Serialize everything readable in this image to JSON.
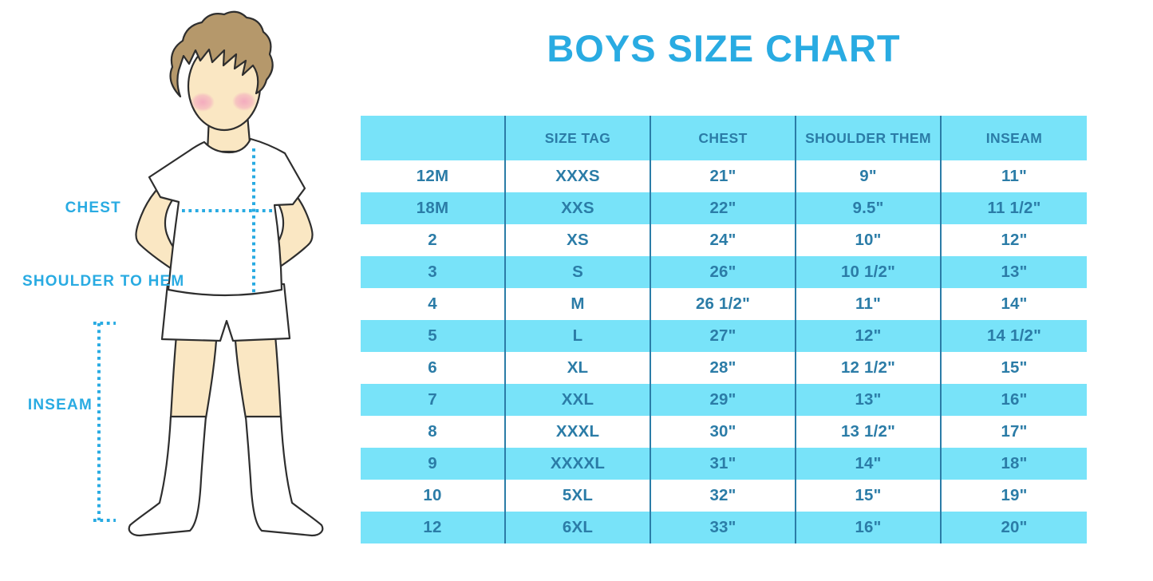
{
  "page_title": "BOYS SIZE CHART",
  "colors": {
    "accent": "#29ABE2",
    "stripe": "#78E3F9",
    "table_text": "#2B7CA7",
    "divider": "#2B7CA7",
    "skin": "#FAE7C3",
    "hair": "#B5986B",
    "blush": "#F3A8BE",
    "outline": "#2E2E2E"
  },
  "diagram": {
    "labels": {
      "chest": "CHEST",
      "shoulder_to_hem": "SHOULDER TO HEM",
      "inseam": "INSEAM"
    }
  },
  "table": {
    "headers": [
      "",
      "SIZE TAG",
      "CHEST",
      "SHOULDER THEM",
      "INSEAM"
    ],
    "rows": [
      [
        "12M",
        "XXXS",
        "21\"",
        "9\"",
        "11\""
      ],
      [
        "18M",
        "XXS",
        "22\"",
        "9.5\"",
        "11 1/2\""
      ],
      [
        "2",
        "XS",
        "24\"",
        "10\"",
        "12\""
      ],
      [
        "3",
        "S",
        "26\"",
        "10 1/2\"",
        "13\""
      ],
      [
        "4",
        "M",
        "26 1/2\"",
        "11\"",
        "14\""
      ],
      [
        "5",
        "L",
        "27\"",
        "12\"",
        "14 1/2\""
      ],
      [
        "6",
        "XL",
        "28\"",
        "12 1/2\"",
        "15\""
      ],
      [
        "7",
        "XXL",
        "29\"",
        "13\"",
        "16\""
      ],
      [
        "8",
        "XXXL",
        "30\"",
        "13 1/2\"",
        "17\""
      ],
      [
        "9",
        "XXXXL",
        "31\"",
        "14\"",
        "18\""
      ],
      [
        "10",
        "5XL",
        "32\"",
        "15\"",
        "19\""
      ],
      [
        "12",
        "6XL",
        "33\"",
        "16\"",
        "20\""
      ]
    ]
  }
}
